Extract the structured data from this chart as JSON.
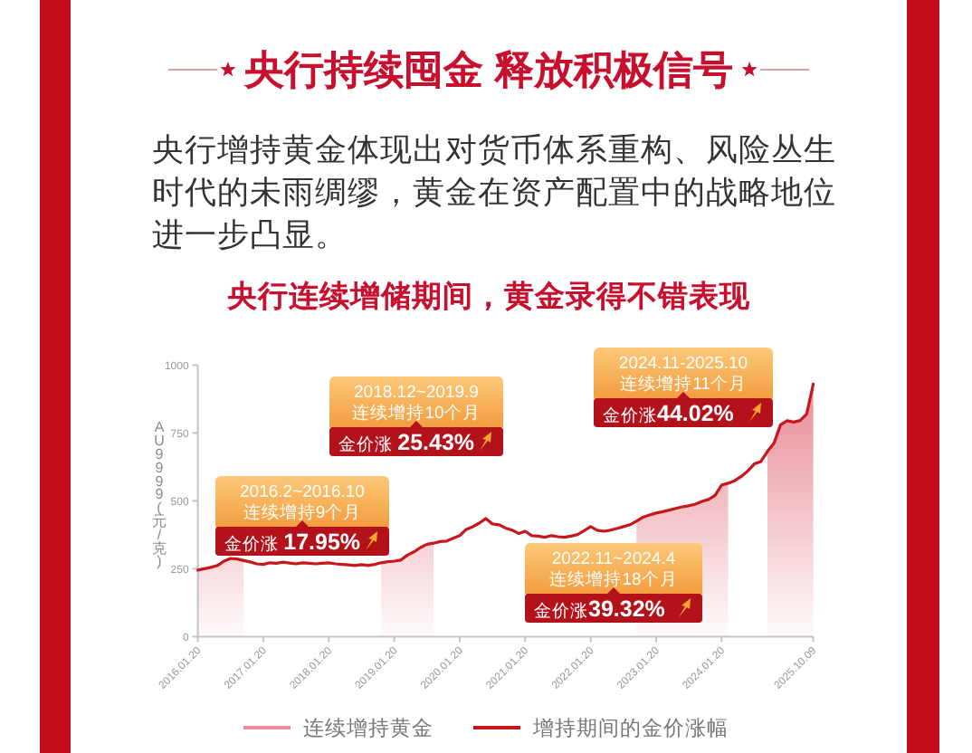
{
  "chart_data": {
    "type": "line",
    "title": "央行持续囤金 释放积极信号",
    "subtitle": "央行增持黄金体现出对货币体系重构、风险丛生时代的未雨绸缪，黄金在资产配置中的战略地位进一步凸显。",
    "ylabel": "AU9999(元/克)",
    "annotations": [
      "央行连续增储期间，黄金录得不错表现",
      "2016.2~2016.10",
      "连续增持9个月",
      "金价涨 17.95%",
      "2018.12~2019.9",
      "连续增持10个月",
      "金价涨 25.43%",
      "2022.11~2024.4",
      "连续增持18个月",
      "金价涨39.32%",
      "2024.11-2025.10",
      "连续增持11个月",
      "金价涨44.02%"
    ],
    "categories": [
      "2016.01.20",
      null,
      null,
      null,
      null,
      null,
      null,
      null,
      null,
      null,
      "2017.01.20",
      null,
      null,
      null,
      null,
      null,
      null,
      null,
      null,
      null,
      "2018.01.20",
      null,
      null,
      null,
      null,
      null,
      null,
      null,
      null,
      null,
      "2019.01.20",
      null,
      null,
      null,
      null,
      null,
      null,
      null,
      null,
      null,
      "2020.01.20",
      null,
      null,
      null,
      null,
      null,
      null,
      null,
      null,
      null,
      "2021.01.20",
      null,
      null,
      null,
      null,
      null,
      null,
      null,
      null,
      null,
      "2022.01.20",
      null,
      null,
      null,
      null,
      null,
      null,
      null,
      null,
      null,
      "2023.01.20",
      null,
      null,
      null,
      null,
      null,
      null,
      null,
      null,
      null,
      "2024.01.20",
      null,
      null,
      null,
      null,
      null,
      null,
      null,
      null,
      null,
      null,
      null,
      null,
      null,
      "2025.10.09"
    ],
    "series": [
      {
        "name": "连续增持黄金",
        "type": "area",
        "color": "#e98f99",
        "values": [
          245,
          250,
          255,
          262,
          278,
          288,
          286,
          280,
          null,
          null,
          null,
          null,
          null,
          null,
          null,
          null,
          null,
          null,
          null,
          null,
          null,
          null,
          null,
          null,
          null,
          null,
          null,
          null,
          272,
          276,
          278,
          282,
          300,
          312,
          328,
          340,
          344,
          null,
          null,
          null,
          null,
          null,
          null,
          null,
          null,
          null,
          null,
          null,
          null,
          null,
          null,
          null,
          null,
          null,
          null,
          null,
          null,
          null,
          null,
          null,
          null,
          null,
          null,
          null,
          null,
          null,
          null,
          425,
          440,
          448,
          455,
          460,
          466,
          472,
          478,
          482,
          488,
          498,
          505,
          520,
          558,
          565,
          null,
          null,
          null,
          null,
          null,
          682,
          712,
          780,
          795,
          790,
          796,
          820,
          930
        ]
      },
      {
        "name": "增持期间的金价涨幅",
        "type": "line",
        "color": "#c8161d",
        "values": [
          245,
          250,
          255,
          262,
          278,
          288,
          286,
          280,
          275,
          268,
          266,
          272,
          270,
          274,
          271,
          268,
          272,
          270,
          268,
          270,
          272,
          268,
          266,
          264,
          262,
          265,
          262,
          266,
          272,
          276,
          278,
          282,
          300,
          312,
          328,
          340,
          344,
          350,
          352,
          362,
          372,
          395,
          405,
          418,
          435,
          415,
          412,
          400,
          392,
          380,
          388,
          372,
          370,
          366,
          372,
          368,
          366,
          370,
          376,
          390,
          405,
          392,
          388,
          392,
          398,
          405,
          412,
          425,
          440,
          448,
          455,
          460,
          466,
          472,
          478,
          482,
          488,
          498,
          505,
          520,
          558,
          565,
          574,
          590,
          610,
          636,
          645,
          682,
          712,
          780,
          795,
          790,
          796,
          820,
          930
        ]
      }
    ],
    "ylim": [
      0,
      1000
    ],
    "yticks": [
      0,
      250,
      500,
      750,
      1000
    ],
    "legend": "bottom"
  }
}
